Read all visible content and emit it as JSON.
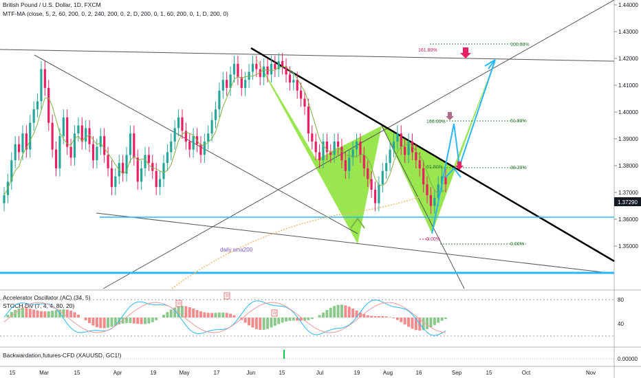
{
  "header": {
    "symbol_title": "British Pound / U.S. Dollar, 1D, FXCM",
    "indicator_1": "MTF-MA (close, 5, 2, 60, 200, 0, 2, 240, 200, 0, 2, D, 200, 0, 1, 60, 200, 0, 1, D, 200, 0)"
  },
  "panes": {
    "ac_label": "Accelerator Oscillator (AC) (34, 5)",
    "stoch_label": "STOCH Div (7, 4, 4, 80, 20)",
    "backwardation_label": "Backwardation,futures-CFD (XAUUSD, GC1!)"
  },
  "annotations": {
    "sma_label": "daily sma200"
  },
  "colors": {
    "pattern_fill": "#8ee33c",
    "bull_candle": "#26a69a",
    "bear_candle": "#e91e63",
    "support_line": "#29b6f6",
    "trend_line": "#000000",
    "fib_green": "#2e7d32",
    "fib_red": "#c2185b",
    "arrow_blue": "#29b6f6",
    "price_tag": "#131722"
  },
  "chart_data": {
    "type": "line",
    "price_axis": {
      "ticks": [
        "1.44000",
        "1.43000",
        "1.42000",
        "1.41000",
        "1.40000",
        "1.39000",
        "1.38000",
        "1.37000",
        "1.36000",
        "1.35000"
      ],
      "current_price": "1.37290"
    },
    "x_ticks": [
      "15",
      "Mar",
      "15",
      "Apr",
      "19",
      "May",
      "17",
      "Jun",
      "15",
      "Jul",
      "19",
      "Aug",
      "16",
      "Sep",
      "15",
      "Oct",
      "Nov"
    ],
    "fib_labels_left": [
      "161.80%",
      "100.00%",
      "61.80%",
      "0.00%"
    ],
    "fib_labels_right": [
      "100.00%",
      "61.80%",
      "38.20%",
      "0.00%"
    ],
    "oscillator_ticks": [
      "80",
      "40"
    ],
    "backwardation_ticks": [
      "0.00000"
    ],
    "signal_letter": "R",
    "closes": [
      1.369,
      1.374,
      1.382,
      1.388,
      1.385,
      1.392,
      1.386,
      1.396,
      1.401,
      1.404,
      1.416,
      1.409,
      1.396,
      1.386,
      1.379,
      1.391,
      1.398,
      1.387,
      1.383,
      1.392,
      1.395,
      1.389,
      1.394,
      1.388,
      1.382,
      1.387,
      1.391,
      1.384,
      1.379,
      1.372,
      1.376,
      1.381,
      1.377,
      1.384,
      1.392,
      1.383,
      1.374,
      1.379,
      1.384,
      1.381,
      1.378,
      1.372,
      1.375,
      1.381,
      1.385,
      1.389,
      1.394,
      1.398,
      1.393,
      1.389,
      1.386,
      1.391,
      1.388,
      1.384,
      1.389,
      1.392,
      1.397,
      1.401,
      1.408,
      1.412,
      1.409,
      1.414,
      1.418,
      1.413,
      1.409,
      1.412,
      1.415,
      1.418,
      1.416,
      1.413,
      1.417,
      1.414,
      1.418,
      1.416,
      1.419,
      1.417,
      1.414,
      1.411,
      1.412,
      1.408,
      1.405,
      1.402,
      1.392,
      1.389,
      1.385,
      1.382,
      1.389,
      1.385,
      1.384,
      1.389,
      1.387,
      1.382,
      1.378,
      1.383,
      1.386,
      1.389,
      1.384,
      1.379,
      1.375,
      1.371,
      1.366,
      1.373,
      1.378,
      1.381,
      1.386,
      1.389,
      1.392,
      1.387,
      1.384,
      1.389,
      1.385,
      1.382,
      1.379,
      1.373,
      1.369,
      1.365,
      1.368,
      1.373,
      1.376,
      1.373
    ]
  }
}
